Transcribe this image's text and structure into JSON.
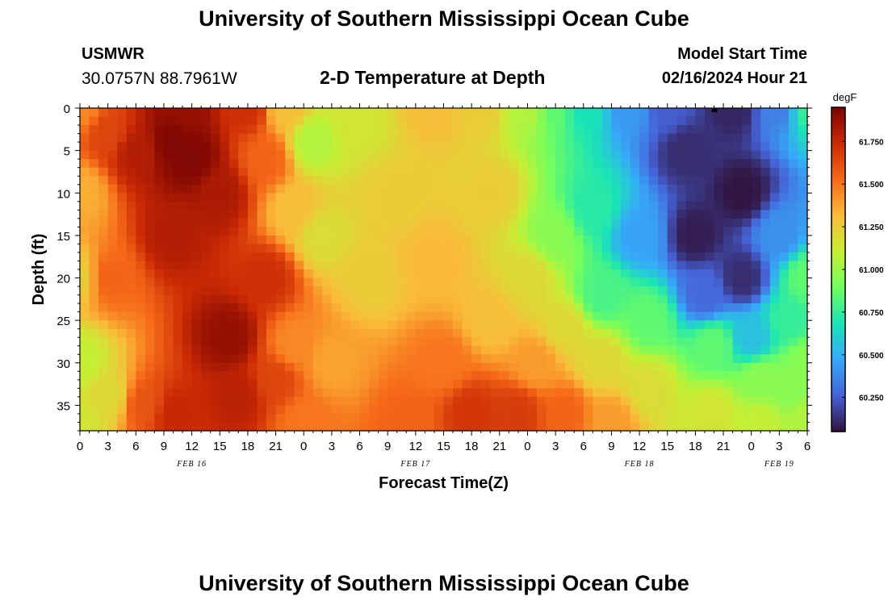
{
  "header": {
    "title": "University of Southern Mississippi Ocean Cube",
    "station_name": "USMWR",
    "station_coords": "30.0757N  88.7961W",
    "plot_title": "2-D Temperature at Depth",
    "model_start_label": "Model Start Time",
    "model_start_value": "02/16/2024 Hour 21"
  },
  "footer": {
    "title": "University of Southern Mississippi Ocean Cube"
  },
  "chart_data": {
    "type": "heatmap",
    "title": "2-D Temperature at Depth",
    "xlabel": "Forecast Time(Z)",
    "ylabel": "Depth (ft)",
    "colorbar_unit": "degF",
    "x_range_hours": [
      0,
      78
    ],
    "x_tick_labels": [
      "0",
      "3",
      "6",
      "9",
      "12",
      "15",
      "18",
      "21",
      "0",
      "3",
      "6",
      "9",
      "12",
      "15",
      "18",
      "21",
      "0",
      "3",
      "6",
      "9",
      "12",
      "15",
      "18",
      "21",
      "0",
      "3",
      "6"
    ],
    "date_labels": [
      {
        "label": "FEB 16",
        "at_hour": 12
      },
      {
        "label": "FEB 17",
        "at_hour": 36
      },
      {
        "label": "FEB 18",
        "at_hour": 60
      },
      {
        "label": "FEB 19",
        "at_hour": 75
      }
    ],
    "y_range_ft": [
      0,
      38
    ],
    "y_tick_labels": [
      "0",
      "5",
      "10",
      "15",
      "20",
      "25",
      "30",
      "35"
    ],
    "y_ticks": [
      0,
      5,
      10,
      15,
      20,
      25,
      30,
      35
    ],
    "colorbar_range": [
      60.05,
      61.95
    ],
    "colorbar_ticks": [
      "60.250",
      "60.500",
      "60.750",
      "61.000",
      "61.250",
      "61.500",
      "61.750"
    ],
    "colorbar_tick_values": [
      60.25,
      60.5,
      60.75,
      61.0,
      61.25,
      61.5,
      61.75
    ],
    "colormap": [
      "#30123b",
      "#4662d7",
      "#36aaf9",
      "#1ae4b6",
      "#72fe5e",
      "#c7ef34",
      "#fabb39",
      "#f66b19",
      "#ca2a04",
      "#7a0403"
    ],
    "control_points": [
      {
        "h": 0,
        "d": 0,
        "v": 61.45
      },
      {
        "h": 0,
        "d": 10,
        "v": 61.35
      },
      {
        "h": 0,
        "d": 20,
        "v": 61.25
      },
      {
        "h": 0,
        "d": 30,
        "v": 61.1
      },
      {
        "h": 0,
        "d": 37,
        "v": 61.15
      },
      {
        "h": 3,
        "d": 3,
        "v": 61.65
      },
      {
        "h": 3,
        "d": 20,
        "v": 61.55
      },
      {
        "h": 3,
        "d": 34,
        "v": 61.2
      },
      {
        "h": 6,
        "d": 5,
        "v": 61.8
      },
      {
        "h": 7,
        "d": 35,
        "v": 61.6
      },
      {
        "h": 10,
        "d": 4,
        "v": 61.93
      },
      {
        "h": 11,
        "d": 0,
        "v": 61.88
      },
      {
        "h": 12,
        "d": 6,
        "v": 61.93
      },
      {
        "h": 10,
        "d": 15,
        "v": 61.8
      },
      {
        "h": 10,
        "d": 36,
        "v": 61.75
      },
      {
        "h": 15,
        "d": 10,
        "v": 61.82
      },
      {
        "h": 16,
        "d": 27,
        "v": 61.88
      },
      {
        "h": 17,
        "d": 34,
        "v": 61.78
      },
      {
        "h": 18,
        "d": 0,
        "v": 61.72
      },
      {
        "h": 20,
        "d": 6,
        "v": 61.55
      },
      {
        "h": 20,
        "d": 20,
        "v": 61.72
      },
      {
        "h": 21,
        "d": 32,
        "v": 61.65
      },
      {
        "h": 22,
        "d": 0,
        "v": 61.3
      },
      {
        "h": 23,
        "d": 12,
        "v": 61.3
      },
      {
        "h": 23,
        "d": 28,
        "v": 61.45
      },
      {
        "h": 24,
        "d": 37,
        "v": 61.5
      },
      {
        "h": 25,
        "d": 4,
        "v": 61.05
      },
      {
        "h": 26,
        "d": 15,
        "v": 61.18
      },
      {
        "h": 27,
        "d": 30,
        "v": 61.38
      },
      {
        "h": 30,
        "d": 2,
        "v": 61.15
      },
      {
        "h": 31,
        "d": 20,
        "v": 61.25
      },
      {
        "h": 34,
        "d": 10,
        "v": 61.25
      },
      {
        "h": 35,
        "d": 37,
        "v": 61.55
      },
      {
        "h": 38,
        "d": 0,
        "v": 61.3
      },
      {
        "h": 38,
        "d": 18,
        "v": 61.32
      },
      {
        "h": 39,
        "d": 30,
        "v": 61.5
      },
      {
        "h": 42,
        "d": 36,
        "v": 61.7
      },
      {
        "h": 43,
        "d": 0,
        "v": 61.25
      },
      {
        "h": 44,
        "d": 10,
        "v": 61.25
      },
      {
        "h": 44,
        "d": 25,
        "v": 61.3
      },
      {
        "h": 47,
        "d": 36,
        "v": 61.68
      },
      {
        "h": 48,
        "d": 0,
        "v": 61.05
      },
      {
        "h": 48,
        "d": 20,
        "v": 61.2
      },
      {
        "h": 49,
        "d": 30,
        "v": 61.4
      },
      {
        "h": 51,
        "d": 0,
        "v": 60.85
      },
      {
        "h": 51,
        "d": 15,
        "v": 60.95
      },
      {
        "h": 52,
        "d": 26,
        "v": 61.2
      },
      {
        "h": 52,
        "d": 36,
        "v": 61.55
      },
      {
        "h": 54,
        "d": 0,
        "v": 60.68
      },
      {
        "h": 55,
        "d": 12,
        "v": 60.72
      },
      {
        "h": 56,
        "d": 22,
        "v": 60.8
      },
      {
        "h": 56,
        "d": 30,
        "v": 61.2
      },
      {
        "h": 57,
        "d": 37,
        "v": 61.4
      },
      {
        "h": 59,
        "d": 0,
        "v": 60.42
      },
      {
        "h": 60,
        "d": 15,
        "v": 60.45
      },
      {
        "h": 61,
        "d": 25,
        "v": 60.85
      },
      {
        "h": 61,
        "d": 33,
        "v": 61.18
      },
      {
        "h": 63,
        "d": 0,
        "v": 60.25
      },
      {
        "h": 65,
        "d": 5,
        "v": 60.12
      },
      {
        "h": 66,
        "d": 15,
        "v": 60.08
      },
      {
        "h": 67,
        "d": 22,
        "v": 60.28
      },
      {
        "h": 68,
        "d": 28,
        "v": 60.85
      },
      {
        "h": 68,
        "d": 36,
        "v": 61.15
      },
      {
        "h": 70,
        "d": 0,
        "v": 60.1
      },
      {
        "h": 71,
        "d": 10,
        "v": 60.06
      },
      {
        "h": 71,
        "d": 20,
        "v": 60.12
      },
      {
        "h": 72,
        "d": 27,
        "v": 60.55
      },
      {
        "h": 73,
        "d": 32,
        "v": 60.95
      },
      {
        "h": 73,
        "d": 37,
        "v": 61.1
      },
      {
        "h": 75,
        "d": 0,
        "v": 60.35
      },
      {
        "h": 75,
        "d": 15,
        "v": 60.4
      },
      {
        "h": 76,
        "d": 25,
        "v": 60.75
      },
      {
        "h": 76,
        "d": 33,
        "v": 60.95
      },
      {
        "h": 78,
        "d": 0,
        "v": 60.75
      },
      {
        "h": 78,
        "d": 20,
        "v": 60.85
      },
      {
        "h": 78,
        "d": 30,
        "v": 60.95
      },
      {
        "h": 78,
        "d": 37,
        "v": 61.05
      }
    ],
    "marker_point": {
      "h": 68,
      "d": 0
    }
  }
}
